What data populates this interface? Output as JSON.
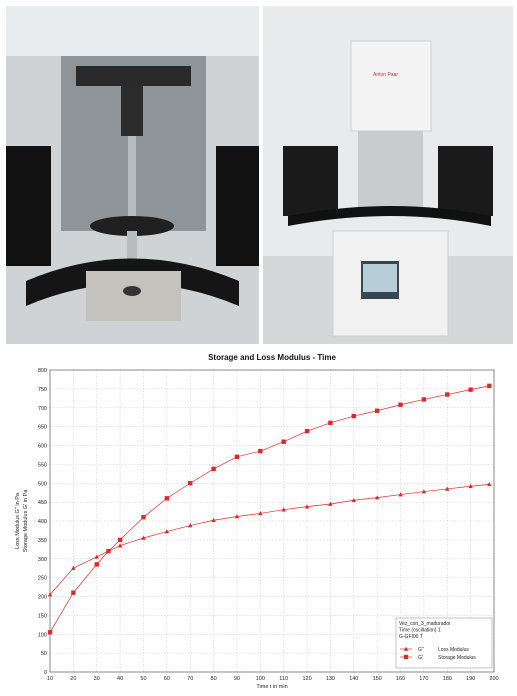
{
  "photos": {
    "left": {
      "name": "rheometer-sample-area-photo"
    },
    "right": {
      "name": "rheometer-instrument-photo",
      "brand_label": "Anton Paar"
    }
  },
  "chart_data": {
    "type": "line",
    "title": "Storage and Loss Modulus - Time",
    "xlabel": "Time t in min",
    "ylabel_lines": [
      "Loss Modulus G'' in Pa",
      "Storage Modulus G' in Pa"
    ],
    "xlim": [
      10,
      200
    ],
    "ylim": [
      0,
      800
    ],
    "xticks": [
      10,
      20,
      30,
      40,
      50,
      60,
      70,
      80,
      90,
      100,
      110,
      120,
      130,
      140,
      150,
      160,
      170,
      180,
      190,
      200
    ],
    "yticks": [
      0,
      50,
      100,
      150,
      200,
      250,
      300,
      350,
      400,
      450,
      500,
      550,
      600,
      650,
      700,
      750,
      800
    ],
    "grid": true,
    "legend": {
      "placement": "bottom-right",
      "header": [
        "Vez_con_3_madurador",
        "Time (oscillation) 1",
        "G-GFI00 T"
      ]
    },
    "series": [
      {
        "name": "Loss Modulus",
        "symbol": "G''",
        "marker": "triangle",
        "color": "#d92b2b",
        "x": [
          10,
          20,
          30,
          35,
          40,
          50,
          60,
          70,
          80,
          90,
          100,
          110,
          120,
          130,
          140,
          150,
          160,
          170,
          180,
          190,
          198
        ],
        "y": [
          205,
          275,
          305,
          320,
          335,
          355,
          372,
          388,
          402,
          412,
          420,
          430,
          438,
          445,
          455,
          462,
          470,
          478,
          485,
          492,
          497
        ]
      },
      {
        "name": "Storage Modulus",
        "symbol": "G'",
        "marker": "square",
        "color": "#d92b2b",
        "x": [
          10,
          20,
          30,
          35,
          40,
          50,
          60,
          70,
          80,
          90,
          100,
          110,
          120,
          130,
          140,
          150,
          160,
          170,
          180,
          190,
          198
        ],
        "y": [
          105,
          210,
          285,
          320,
          350,
          410,
          460,
          500,
          538,
          570,
          585,
          610,
          638,
          660,
          678,
          692,
          708,
          722,
          735,
          748,
          758
        ]
      }
    ]
  }
}
